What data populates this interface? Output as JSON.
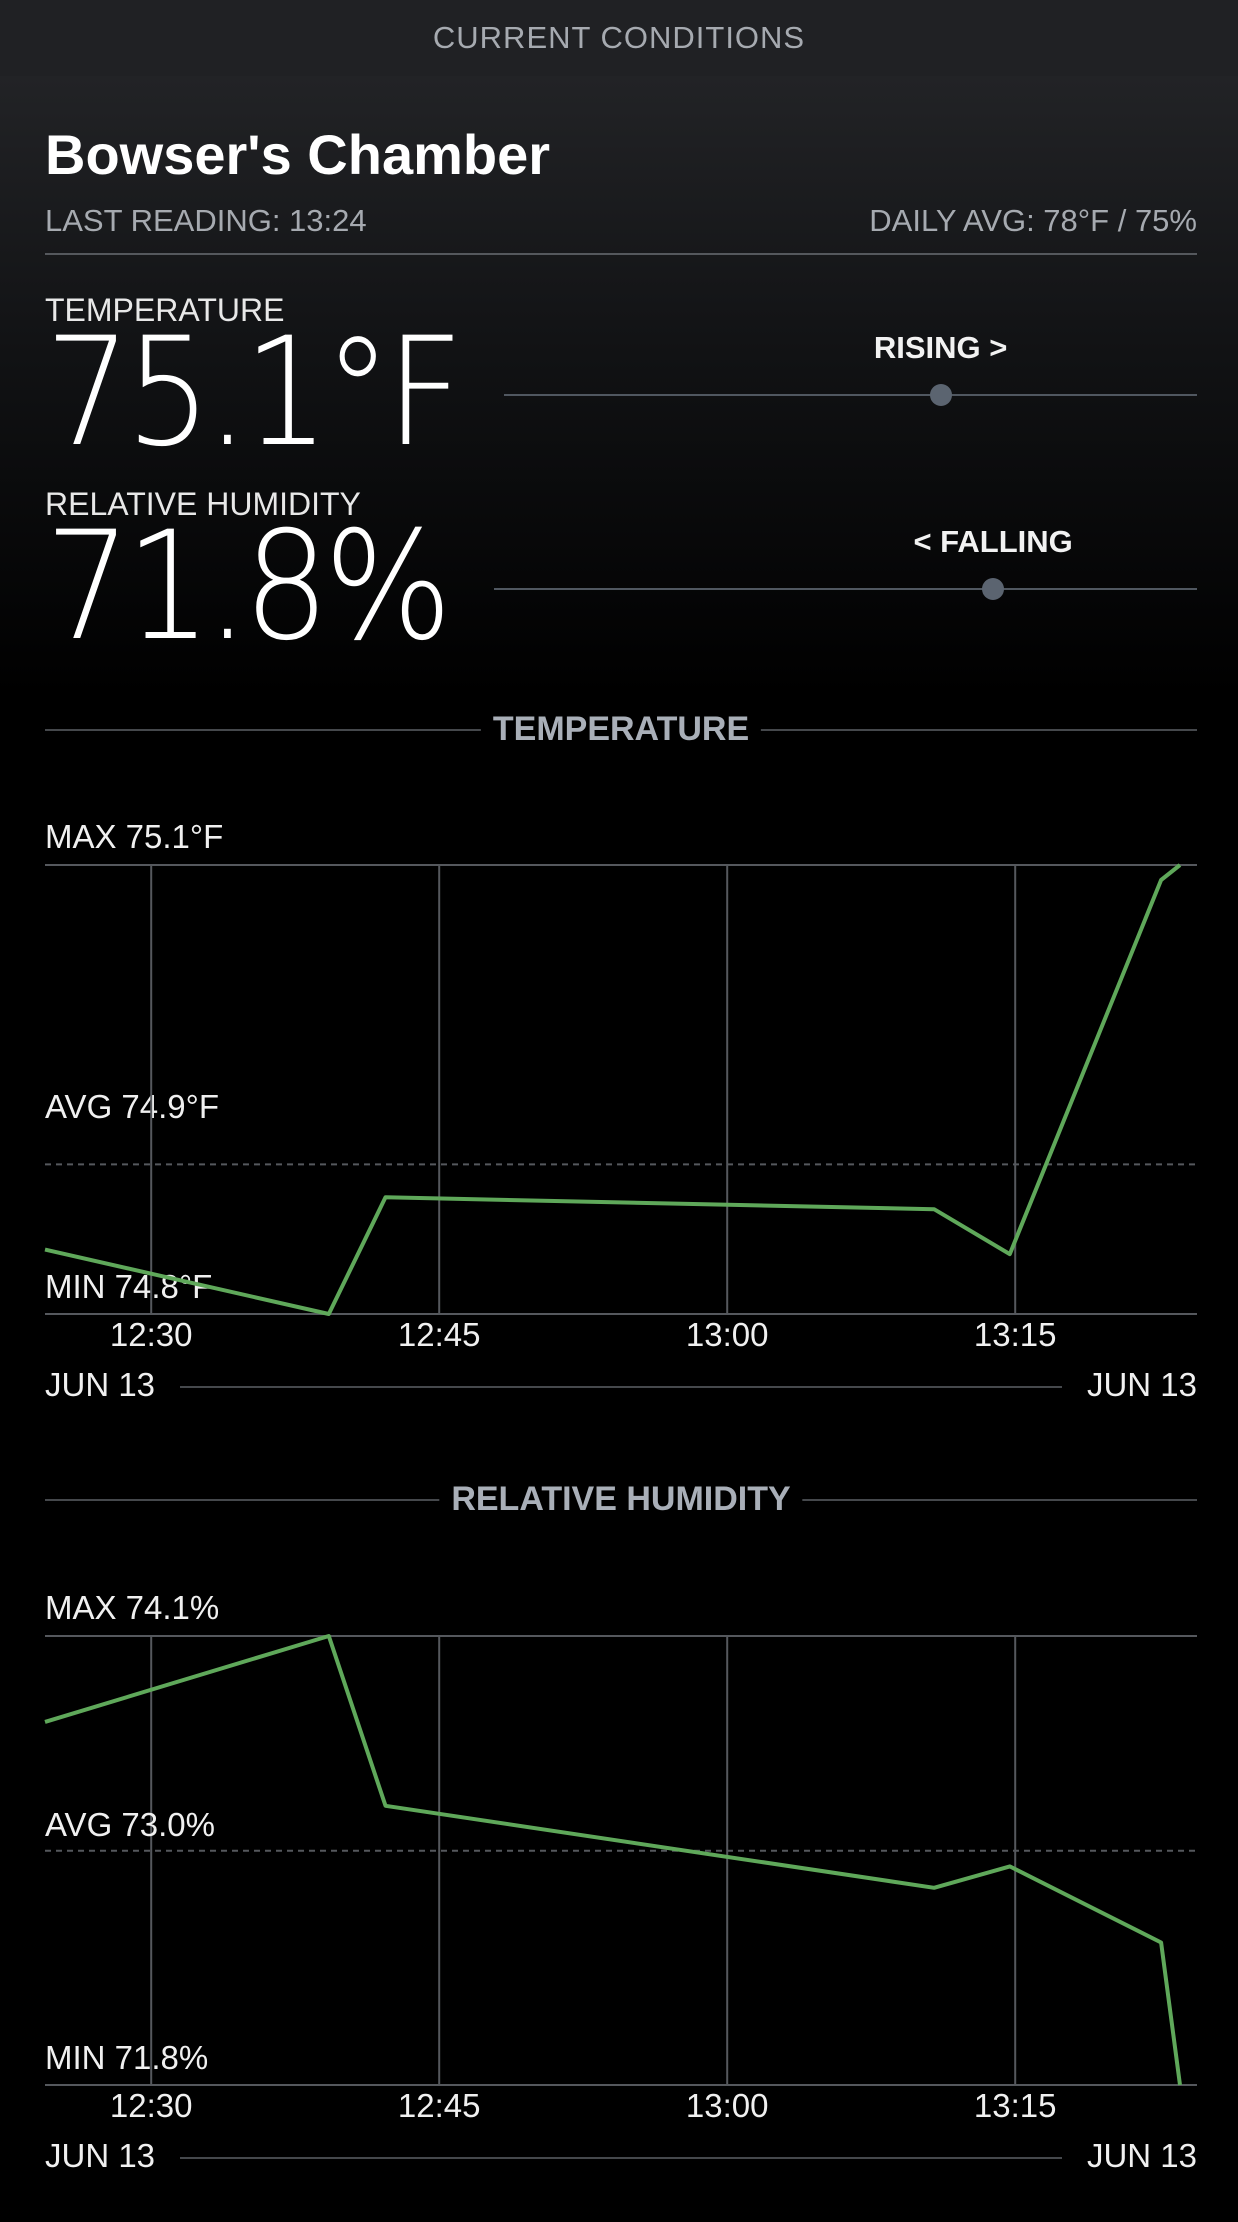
{
  "topbar": {
    "title": "CURRENT CONDITIONS"
  },
  "sensor": {
    "name": "Bowser's Chamber",
    "last_reading": "LAST READING: 13:24",
    "daily_avg": "DAILY AVG: 78°F / 75%"
  },
  "current": {
    "temperature_label": "TEMPERATURE",
    "temperature_value": "75.1°F",
    "temperature_trend": "RISING >",
    "temperature_trend_position": 0.63,
    "humidity_label": "RELATIVE HUMIDITY",
    "humidity_value": "71.8%",
    "humidity_trend": "< FALLING",
    "humidity_trend_position": 0.71
  },
  "colors": {
    "line": "#5fa85a",
    "grid": "#55585d",
    "accent_text": "#a9afb8"
  },
  "chart_data": [
    {
      "type": "line",
      "title": "TEMPERATURE",
      "max_label": "MAX 75.1°F",
      "avg_label": "AVG 74.9°F",
      "min_label": "MIN 74.8°F",
      "ylim": [
        74.8,
        75.1
      ],
      "avg": 74.9,
      "xlim": [
        "12:24",
        "13:24"
      ],
      "ticks": [
        "12:30",
        "12:45",
        "13:00",
        "13:15"
      ],
      "date_left": "JUN 13",
      "date_right": "JUN 13",
      "series": [
        {
          "x": [
            "12:24",
            "12:39",
            "12:42",
            "13:11",
            "13:15",
            "13:23",
            "13:24"
          ],
          "values": [
            74.843,
            74.8,
            74.878,
            74.87,
            74.84,
            75.09,
            75.1
          ]
        }
      ]
    },
    {
      "type": "line",
      "title": "RELATIVE HUMIDITY",
      "max_label": "MAX 74.1%",
      "avg_label": "AVG 73.0%",
      "min_label": "MIN 71.8%",
      "ylim": [
        71.8,
        74.1
      ],
      "avg": 73.0,
      "xlim": [
        "12:24",
        "13:24"
      ],
      "ticks": [
        "12:30",
        "12:45",
        "13:00",
        "13:15"
      ],
      "date_left": "JUN 13",
      "date_right": "JUN 13",
      "series": [
        {
          "x": [
            "12:24",
            "12:39",
            "12:42",
            "13:11",
            "13:15",
            "13:23",
            "13:24"
          ],
          "values": [
            73.66,
            74.1,
            73.23,
            72.81,
            72.92,
            72.53,
            71.8
          ]
        }
      ]
    }
  ]
}
